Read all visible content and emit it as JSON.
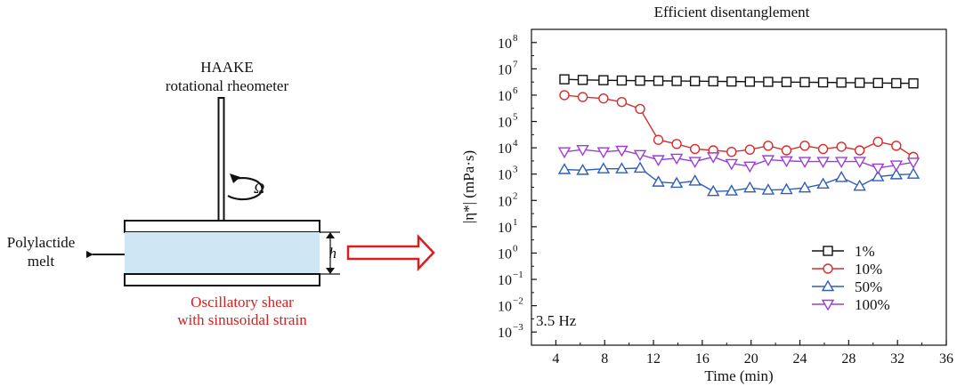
{
  "diagram": {
    "instrument_line1": "HAAKE",
    "instrument_line2": "rotational rheometer",
    "rotation_symbol": "Ω",
    "gap_symbol": "h",
    "melt_line1": "Polylactide",
    "melt_line2": "melt",
    "shear_line1": "Oscillatory shear",
    "shear_line2": "with sinusoidal strain",
    "colors": {
      "melt_fill": "#cfe6f5",
      "shear_text": "#d62020",
      "arrow": "#d62020"
    }
  },
  "chart_data": {
    "type": "line",
    "title": "Efficient disentanglement",
    "xlabel": "Time (min)",
    "ylabel": "|η*| (mPa·s)",
    "annotation": "3.5 Hz",
    "xlim": [
      2,
      36
    ],
    "xticks": [
      4,
      8,
      12,
      16,
      20,
      24,
      28,
      32,
      36
    ],
    "y_scale": "log",
    "ylim_log10": [
      -3.5,
      8.5
    ],
    "ytick_exponents": [
      -3,
      -2,
      -1,
      0,
      1,
      2,
      3,
      4,
      5,
      6,
      7,
      8
    ],
    "ytick_base": "10",
    "grid": false,
    "legend_position": "bottom-right",
    "x": [
      4.7,
      6.2,
      7.9,
      9.4,
      10.9,
      12.4,
      13.9,
      15.4,
      16.9,
      18.4,
      19.9,
      21.4,
      22.9,
      24.4,
      25.9,
      27.4,
      28.9,
      30.4,
      31.9,
      33.3
    ],
    "series": [
      {
        "name": "1%",
        "marker": "square",
        "color": "#111111",
        "values": [
          4000000,
          3800000,
          3700000,
          3600000,
          3550000,
          3500000,
          3450000,
          3400000,
          3350000,
          3300000,
          3250000,
          3200000,
          3150000,
          3100000,
          3050000,
          3000000,
          2950000,
          2900000,
          2850000,
          2800000
        ]
      },
      {
        "name": "10%",
        "marker": "circle",
        "color": "#d62d2d",
        "values": [
          1000000,
          850000,
          750000,
          550000,
          300000,
          20000,
          14000,
          9000,
          8000,
          7000,
          8500,
          12000,
          8000,
          12000,
          9000,
          11000,
          8000,
          17000,
          12000,
          4500
        ]
      },
      {
        "name": "50%",
        "marker": "triangle-up",
        "color": "#2f5fb8",
        "values": [
          1500,
          1400,
          1600,
          1600,
          1700,
          500,
          450,
          550,
          220,
          230,
          300,
          250,
          260,
          300,
          420,
          750,
          350,
          800,
          950,
          1000
        ]
      },
      {
        "name": "100%",
        "marker": "triangle-down",
        "color": "#9a3fd6",
        "values": [
          7000,
          8500,
          7000,
          8000,
          5500,
          3500,
          4000,
          3000,
          4500,
          2500,
          2000,
          3500,
          3200,
          3000,
          3000,
          3000,
          3000,
          1700,
          2200,
          2800
        ]
      }
    ]
  }
}
